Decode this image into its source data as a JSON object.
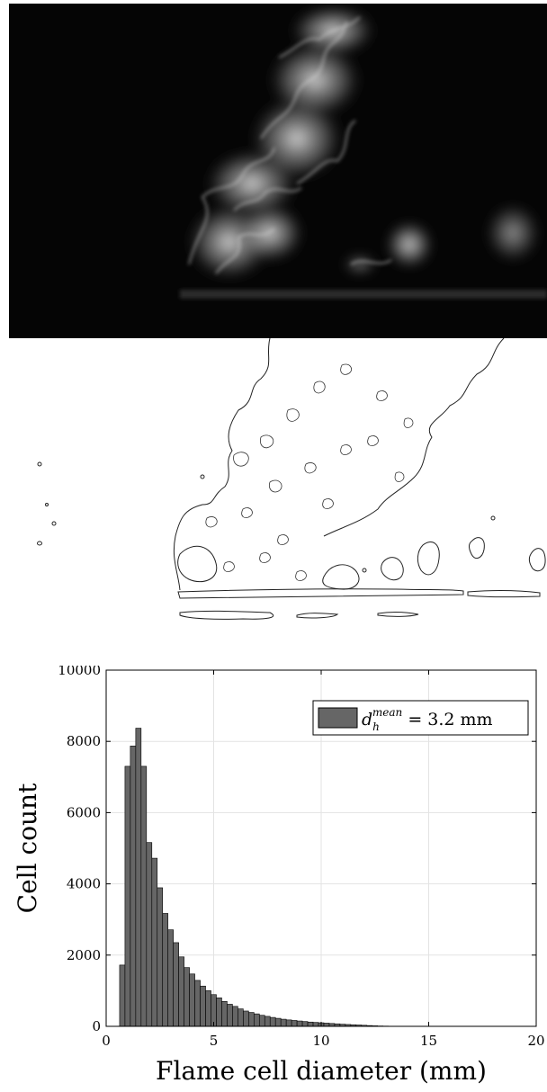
{
  "figure": {
    "top_panel": "flame-photograph",
    "middle_panel": "flame-cell-contours"
  },
  "chart_data": {
    "type": "bar",
    "xlabel": "Flame cell diameter (mm)",
    "ylabel": "Cell count",
    "xlim": [
      0,
      20
    ],
    "ylim": [
      0,
      10000
    ],
    "xticks": [
      0,
      5,
      10,
      15,
      20
    ],
    "yticks": [
      0,
      2000,
      4000,
      6000,
      8000,
      10000
    ],
    "grid": true,
    "legend": {
      "label": "d_h^mean = 3.2 mm",
      "symbol": "d",
      "subscript": "h",
      "superscript": "mean",
      "rest": " = 3.2 mm",
      "position": "top-right"
    },
    "bin_width": 0.25,
    "bin_start": 0.625,
    "values": [
      1720,
      7300,
      7870,
      8370,
      7300,
      5160,
      4720,
      3890,
      3170,
      2710,
      2350,
      1950,
      1650,
      1470,
      1290,
      1130,
      1000,
      890,
      800,
      700,
      620,
      560,
      490,
      430,
      390,
      350,
      310,
      280,
      250,
      225,
      200,
      180,
      165,
      150,
      135,
      120,
      110,
      100,
      90,
      80,
      70,
      60,
      52,
      45,
      38,
      30,
      22,
      15,
      10,
      7,
      5,
      4,
      3,
      2,
      2,
      1,
      1,
      1,
      1,
      0,
      0,
      0
    ],
    "bar_color": "#666666",
    "edge_color": "#000000"
  }
}
